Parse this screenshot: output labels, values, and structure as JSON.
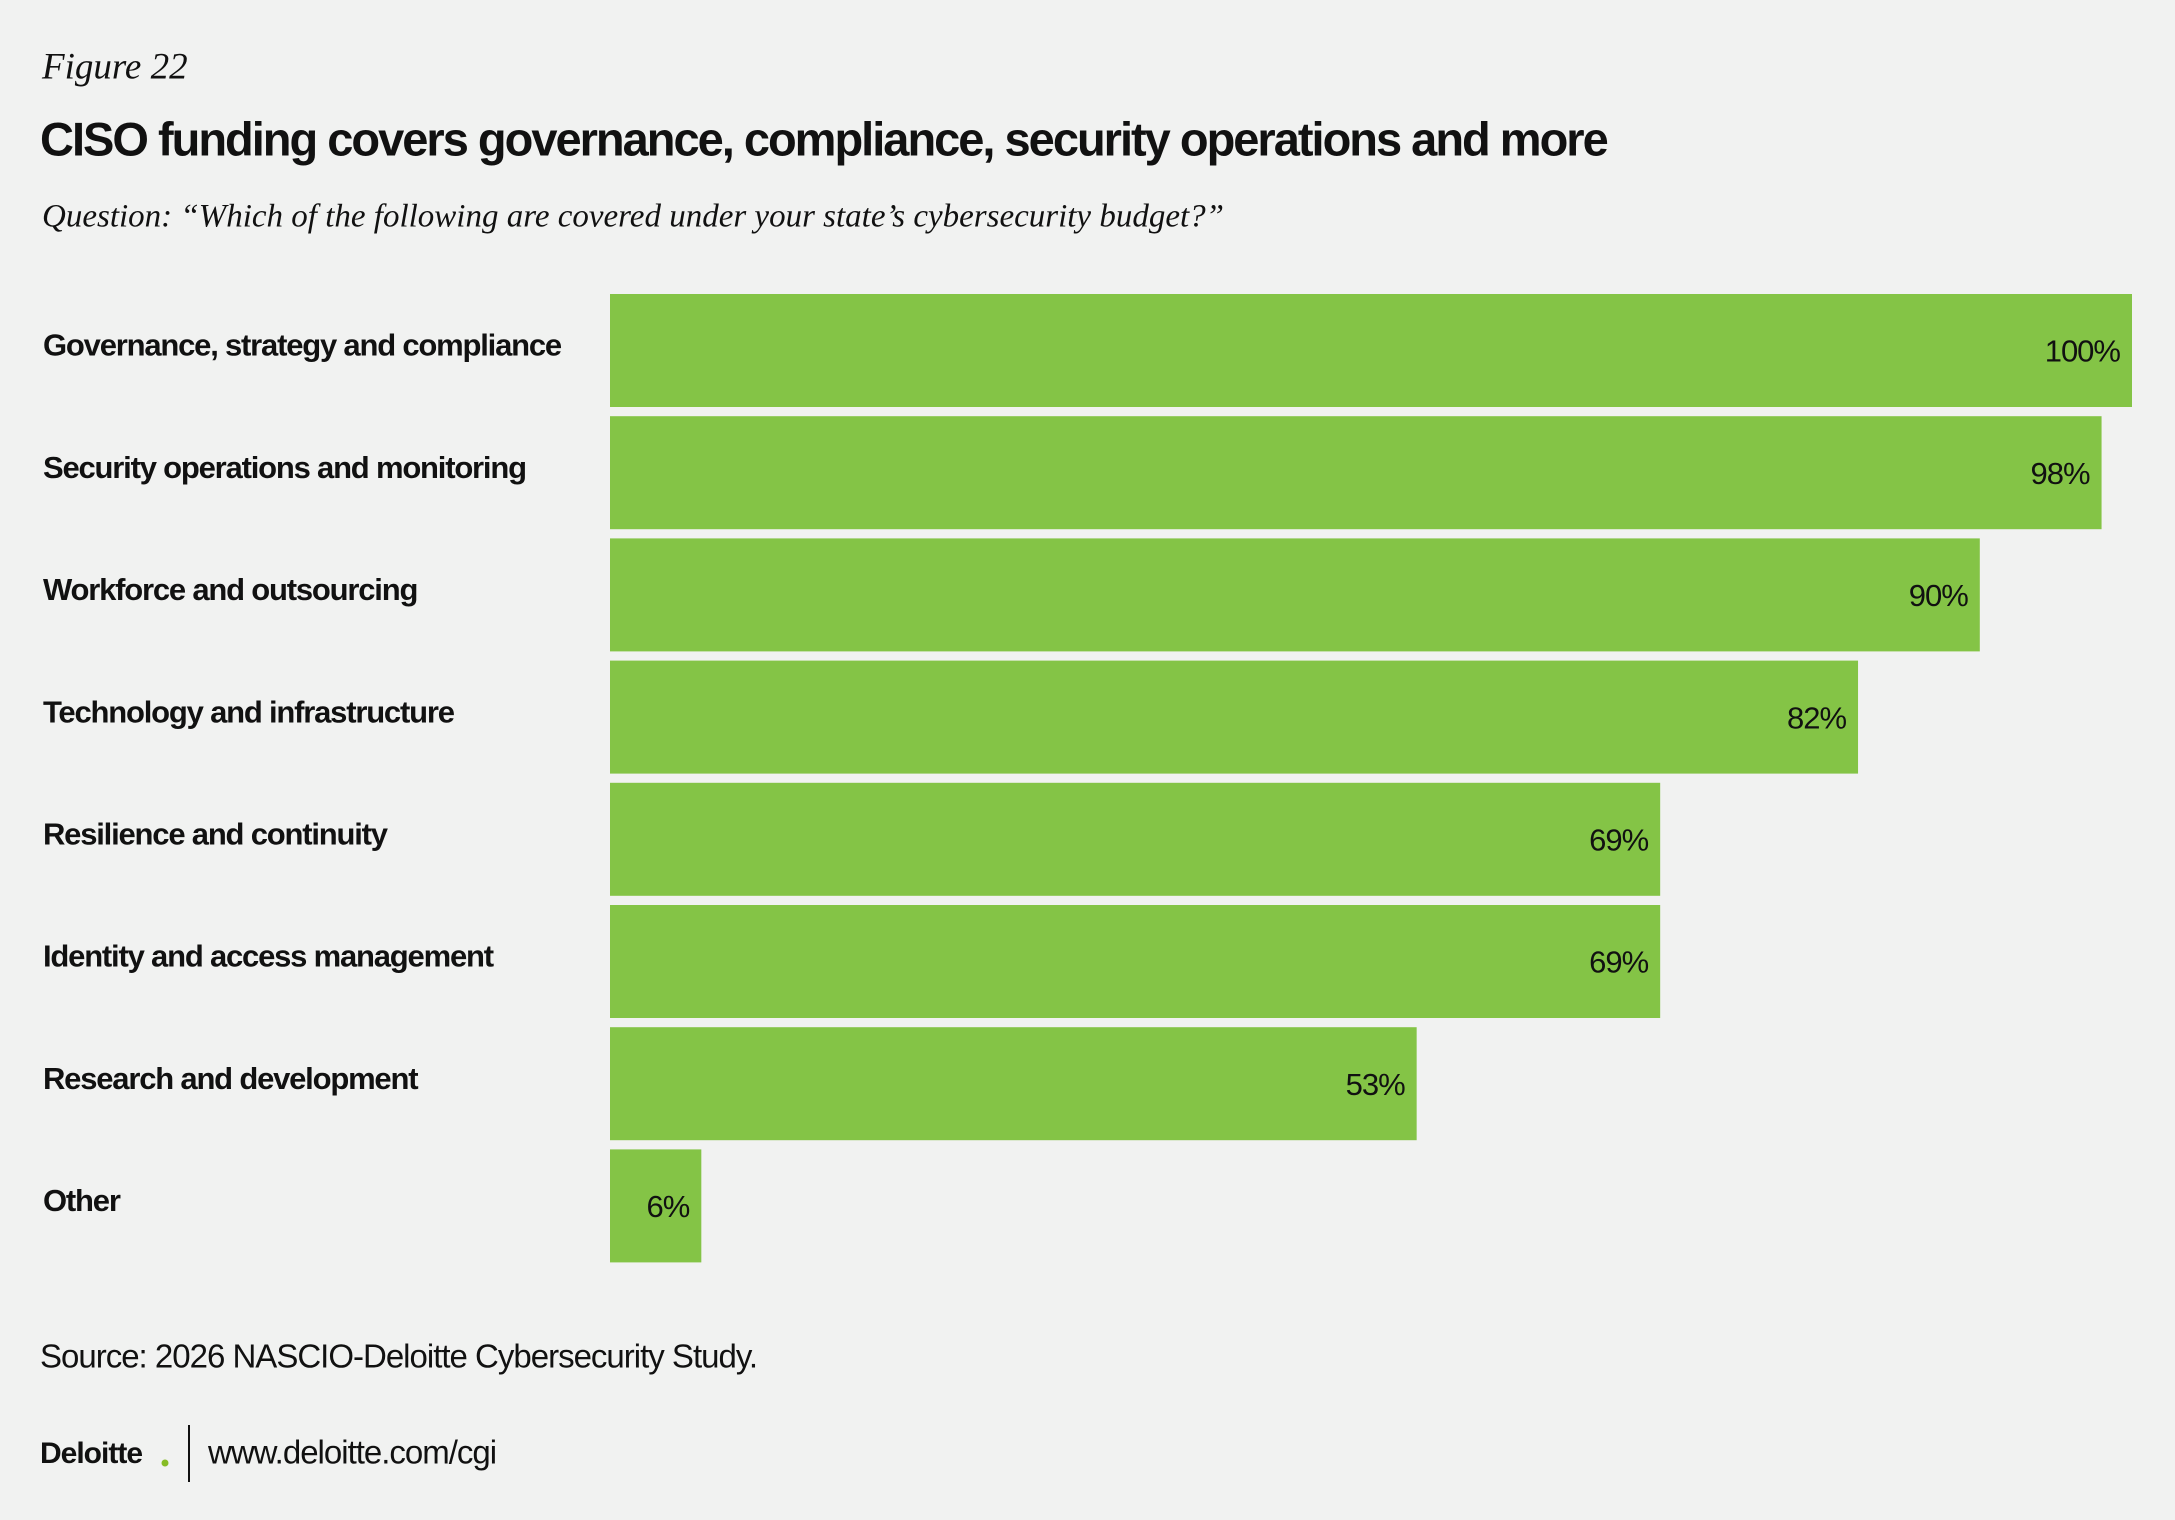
{
  "chart_data": {
    "type": "bar",
    "orientation": "horizontal",
    "figure_label": "Figure 22",
    "title": "CISO funding covers governance, compliance, security operations and more",
    "subtitle": "Question: “Which of the following are covered under your state’s cybersecurity budget?”",
    "categories": [
      "Governance, strategy and compliance",
      "Security operations and monitoring",
      "Workforce and outsourcing",
      "Technology and infrastructure",
      "Resilience and continuity",
      "Identity and access management",
      "Research and development",
      "Other"
    ],
    "values": [
      100,
      98,
      90,
      82,
      69,
      69,
      53,
      6
    ],
    "value_labels": [
      "100%",
      "98%",
      "90%",
      "82%",
      "69%",
      "69%",
      "53%",
      "6%"
    ],
    "color": "#84c446",
    "source": "Source: 2026 NASCIO-Deloitte Cybersecurity Study.",
    "brand": "Deloitte",
    "url": "www.deloitte.com/cgi"
  }
}
